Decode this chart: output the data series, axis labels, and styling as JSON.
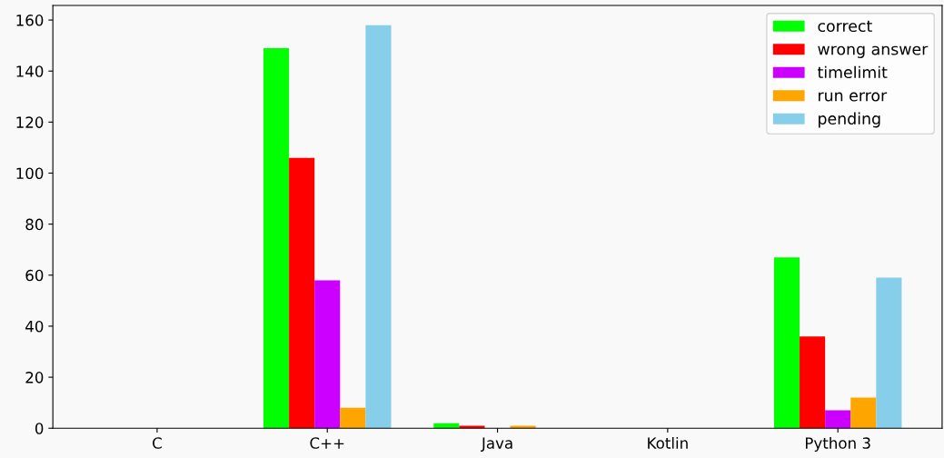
{
  "chart_data": {
    "type": "bar",
    "categories": [
      "C",
      "C++",
      "Java",
      "Kotlin",
      "Python 3"
    ],
    "series": [
      {
        "name": "correct",
        "color": "#00ff00",
        "values": [
          0,
          149,
          2,
          0,
          67
        ]
      },
      {
        "name": "wrong answer",
        "color": "#ff0000",
        "values": [
          0,
          106,
          1,
          0,
          36
        ]
      },
      {
        "name": "timelimit",
        "color": "#cc00ff",
        "values": [
          0,
          58,
          0,
          0,
          7
        ]
      },
      {
        "name": "run error",
        "color": "#ffa500",
        "values": [
          0,
          8,
          1,
          0,
          12
        ]
      },
      {
        "name": "pending",
        "color": "#87ceeb",
        "values": [
          0,
          158,
          0,
          0,
          59
        ]
      }
    ],
    "ylim": [
      0,
      165.7
    ],
    "yticks": [
      0,
      20,
      40,
      60,
      80,
      100,
      120,
      140,
      160
    ],
    "grid": false,
    "legend": "top right"
  }
}
